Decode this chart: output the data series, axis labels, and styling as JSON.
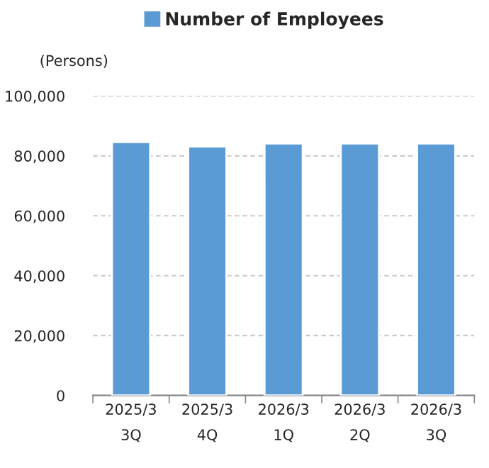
{
  "chart_data": {
    "type": "bar",
    "ylabel": "(Persons)",
    "categories": [
      "2025/3\n3Q",
      "2025/3\n4Q",
      "2026/3\n1Q",
      "2026/3\n2Q",
      "2026/3\n3Q"
    ],
    "series": [
      {
        "name": "Number of Employees",
        "color": "#5b9bd5",
        "values": [
          84600,
          83100,
          84100,
          84100,
          84100
        ]
      }
    ],
    "ylim": [
      0,
      100000
    ],
    "yticks": [
      {
        "value": 0,
        "label": "0"
      },
      {
        "value": 20000,
        "label": "20,000"
      },
      {
        "value": 40000,
        "label": "40,000"
      },
      {
        "value": 60000,
        "label": "60,000"
      },
      {
        "value": 80000,
        "label": "80,000"
      },
      {
        "value": 100000,
        "label": "100,000"
      }
    ],
    "grid": "y",
    "legend": "top"
  }
}
